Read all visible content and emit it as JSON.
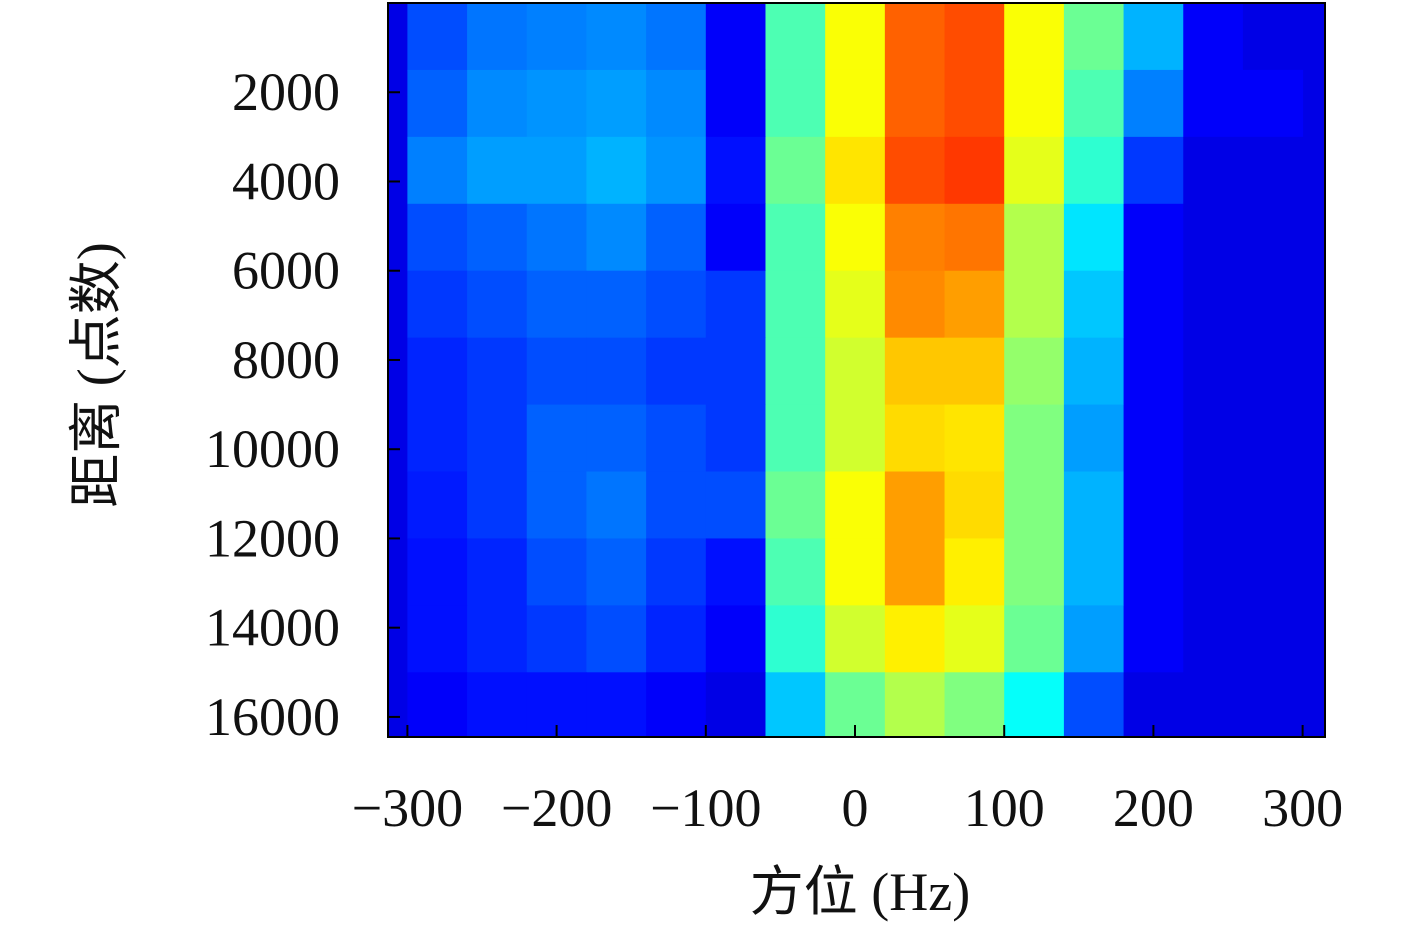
{
  "chart_data": {
    "type": "heatmap",
    "colormap": "jet",
    "xlabel": "方位 (Hz)",
    "ylabel": "距离 (点数)",
    "xlim": [
      -313,
      315
    ],
    "ylim": [
      0,
      16450
    ],
    "y_inverted": true,
    "xticks": [
      {
        "value": -300,
        "label": "−300"
      },
      {
        "value": -200,
        "label": "−200"
      },
      {
        "value": -100,
        "label": "−100"
      },
      0,
      100,
      200,
      300
    ],
    "yticks": [
      2000,
      4000,
      6000,
      8000,
      10000,
      12000,
      14000,
      16000
    ],
    "x": [
      -280,
      -240,
      -200,
      -160,
      -120,
      -80,
      -40,
      0,
      40,
      80,
      120,
      160,
      200,
      240,
      280
    ],
    "y": [
      750,
      2250,
      3750,
      5250,
      6750,
      8250,
      9750,
      11250,
      12750,
      14250,
      15750
    ],
    "z": [
      [
        0.2,
        0.24,
        0.25,
        0.26,
        0.24,
        0.12,
        0.45,
        0.62,
        0.78,
        0.8,
        0.62,
        0.48,
        0.3,
        0.12,
        0.1
      ],
      [
        0.22,
        0.26,
        0.27,
        0.28,
        0.26,
        0.12,
        0.45,
        0.62,
        0.78,
        0.8,
        0.62,
        0.45,
        0.25,
        0.12,
        0.12
      ],
      [
        0.25,
        0.28,
        0.28,
        0.3,
        0.27,
        0.14,
        0.48,
        0.65,
        0.8,
        0.82,
        0.6,
        0.42,
        0.18,
        0.1,
        0.1
      ],
      [
        0.2,
        0.22,
        0.24,
        0.26,
        0.22,
        0.12,
        0.45,
        0.62,
        0.75,
        0.76,
        0.55,
        0.35,
        0.12,
        0.1,
        0.1
      ],
      [
        0.18,
        0.2,
        0.22,
        0.22,
        0.2,
        0.18,
        0.45,
        0.6,
        0.74,
        0.72,
        0.55,
        0.32,
        0.12,
        0.1,
        0.1
      ],
      [
        0.16,
        0.18,
        0.2,
        0.2,
        0.18,
        0.18,
        0.45,
        0.58,
        0.68,
        0.68,
        0.52,
        0.3,
        0.12,
        0.1,
        0.1
      ],
      [
        0.16,
        0.18,
        0.22,
        0.22,
        0.2,
        0.18,
        0.45,
        0.58,
        0.66,
        0.65,
        0.5,
        0.28,
        0.12,
        0.1,
        0.1
      ],
      [
        0.15,
        0.18,
        0.22,
        0.24,
        0.2,
        0.2,
        0.48,
        0.62,
        0.72,
        0.66,
        0.5,
        0.3,
        0.12,
        0.1,
        0.1
      ],
      [
        0.14,
        0.16,
        0.2,
        0.22,
        0.18,
        0.14,
        0.45,
        0.62,
        0.72,
        0.64,
        0.5,
        0.3,
        0.12,
        0.1,
        0.1
      ],
      [
        0.14,
        0.16,
        0.18,
        0.2,
        0.16,
        0.12,
        0.42,
        0.58,
        0.64,
        0.6,
        0.48,
        0.28,
        0.12,
        0.1,
        0.1
      ],
      [
        0.12,
        0.14,
        0.14,
        0.14,
        0.12,
        0.1,
        0.32,
        0.48,
        0.55,
        0.5,
        0.38,
        0.2,
        0.1,
        0.1,
        0.1
      ]
    ]
  }
}
